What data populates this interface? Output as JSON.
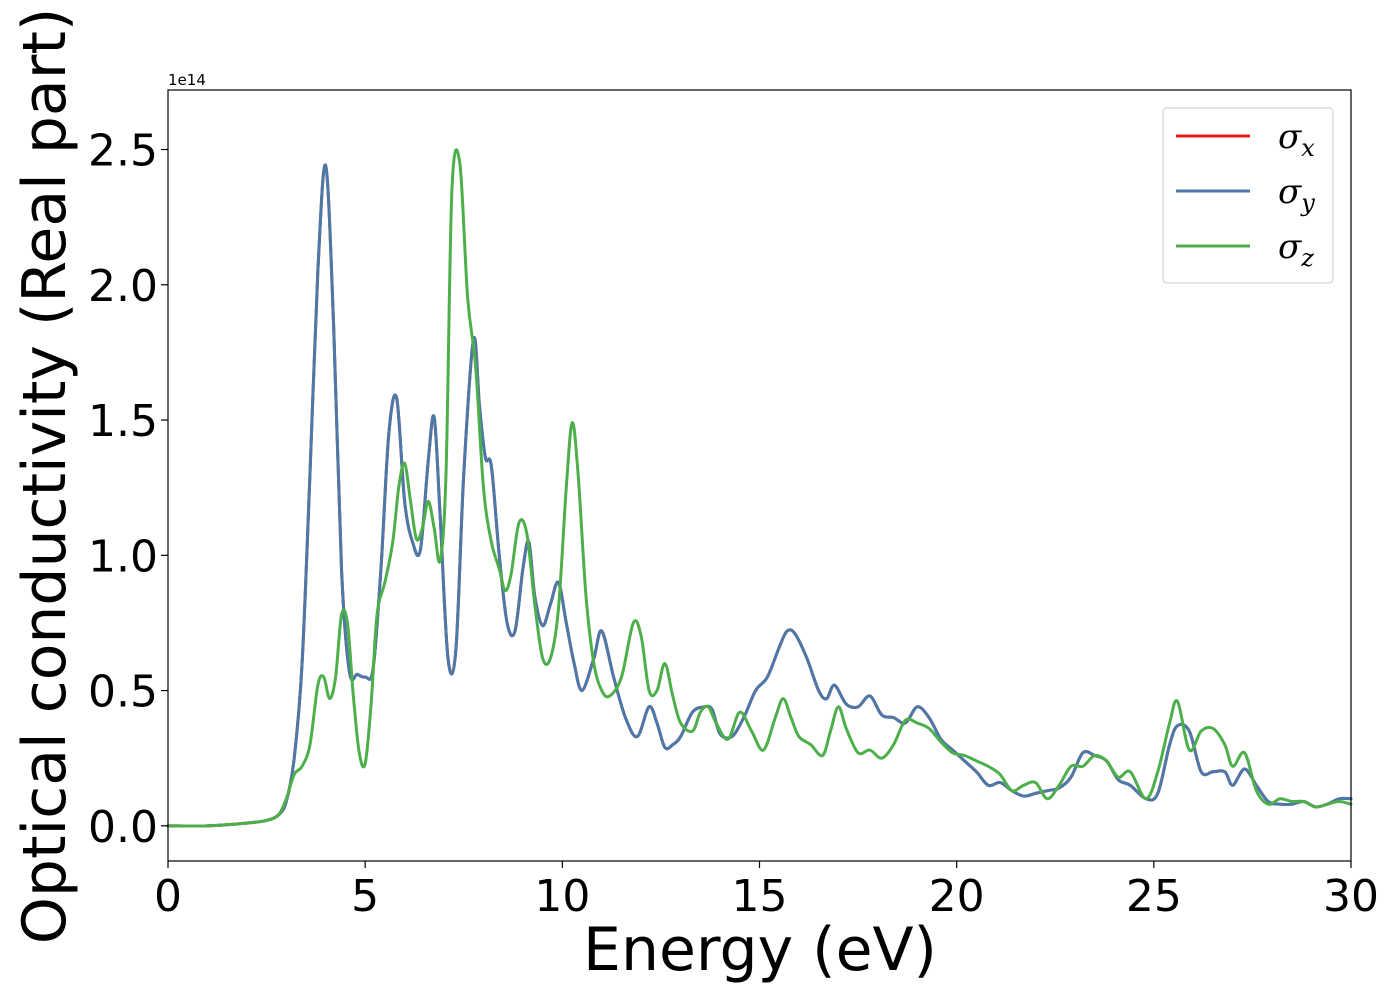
{
  "chart_data": {
    "type": "line",
    "xlabel": "Energy (eV)",
    "ylabel": "Optical conductivity (Real part)",
    "y_offset_label": "1e14",
    "xlim": [
      0,
      30
    ],
    "ylim": [
      -0.13,
      2.72
    ],
    "y_scale_factor": 100000000000000.0,
    "xticks": [
      0,
      5,
      10,
      15,
      20,
      25,
      30
    ],
    "xtick_labels": [
      "0",
      "5",
      "10",
      "15",
      "20",
      "25",
      "30"
    ],
    "yticks": [
      0.0,
      0.5,
      1.0,
      1.5,
      2.0,
      2.5
    ],
    "ytick_labels": [
      "0.0",
      "0.5",
      "1.0",
      "1.5",
      "2.0",
      "2.5"
    ],
    "grid": false,
    "legend_position": "top-right",
    "series": [
      {
        "name": "σx",
        "symbol": "σ",
        "subscript": "x",
        "color": "#e41a1c",
        "x": [
          0,
          1,
          2,
          2.5,
          2.8,
          3.0,
          3.2,
          3.4,
          3.6,
          3.8,
          4.0,
          4.2,
          4.4,
          4.6,
          4.8,
          5.0,
          5.2,
          5.4,
          5.6,
          5.8,
          6.0,
          6.2,
          6.4,
          6.6,
          6.75,
          6.9,
          7.1,
          7.3,
          7.5,
          7.75,
          7.9,
          8.05,
          8.2,
          8.4,
          8.6,
          8.8,
          9.0,
          9.15,
          9.3,
          9.5,
          9.7,
          9.9,
          10.1,
          10.3,
          10.5,
          10.8,
          11.0,
          11.3,
          11.6,
          11.9,
          12.2,
          12.4,
          12.6,
          12.8,
          13.0,
          13.3,
          13.6,
          13.8,
          14.0,
          14.3,
          14.6,
          14.9,
          15.2,
          15.5,
          15.7,
          15.9,
          16.2,
          16.5,
          16.7,
          16.9,
          17.2,
          17.5,
          17.8,
          18.1,
          18.4,
          18.7,
          19.0,
          19.3,
          19.6,
          19.9,
          20.2,
          20.5,
          20.8,
          21.1,
          21.4,
          21.7,
          22.0,
          22.3,
          22.6,
          22.9,
          23.2,
          23.5,
          23.8,
          24.1,
          24.4,
          24.8,
          25.1,
          25.4,
          25.6,
          25.9,
          26.2,
          26.5,
          26.8,
          27.0,
          27.3,
          27.6,
          27.9,
          28.2,
          28.5,
          28.8,
          29.1,
          29.4,
          29.7,
          30.0
        ],
        "values": [
          0.0,
          0.0,
          0.01,
          0.02,
          0.04,
          0.09,
          0.25,
          0.6,
          1.3,
          2.05,
          2.44,
          1.85,
          0.95,
          0.57,
          0.56,
          0.55,
          0.58,
          0.95,
          1.45,
          1.58,
          1.2,
          1.05,
          1.02,
          1.35,
          1.51,
          1.15,
          0.62,
          0.65,
          1.3,
          1.8,
          1.55,
          1.36,
          1.33,
          1.0,
          0.75,
          0.72,
          0.95,
          1.05,
          0.85,
          0.74,
          0.82,
          0.9,
          0.75,
          0.6,
          0.5,
          0.62,
          0.72,
          0.55,
          0.4,
          0.33,
          0.44,
          0.38,
          0.29,
          0.3,
          0.33,
          0.42,
          0.44,
          0.43,
          0.34,
          0.33,
          0.4,
          0.5,
          0.55,
          0.66,
          0.72,
          0.71,
          0.62,
          0.5,
          0.47,
          0.52,
          0.45,
          0.44,
          0.48,
          0.41,
          0.4,
          0.38,
          0.44,
          0.4,
          0.32,
          0.28,
          0.24,
          0.2,
          0.15,
          0.16,
          0.13,
          0.11,
          0.12,
          0.13,
          0.14,
          0.18,
          0.27,
          0.26,
          0.24,
          0.17,
          0.15,
          0.1,
          0.12,
          0.3,
          0.37,
          0.35,
          0.2,
          0.2,
          0.2,
          0.15,
          0.21,
          0.15,
          0.09,
          0.08,
          0.08,
          0.09,
          0.07,
          0.08,
          0.1,
          0.1
        ]
      },
      {
        "name": "σy",
        "symbol": "σ",
        "subscript": "y",
        "color": "#4a79aa",
        "x": [
          0,
          1,
          2,
          2.5,
          2.8,
          3.0,
          3.2,
          3.4,
          3.6,
          3.8,
          4.0,
          4.2,
          4.4,
          4.6,
          4.8,
          5.0,
          5.2,
          5.4,
          5.6,
          5.8,
          6.0,
          6.2,
          6.4,
          6.6,
          6.75,
          6.9,
          7.1,
          7.3,
          7.5,
          7.75,
          7.9,
          8.05,
          8.2,
          8.4,
          8.6,
          8.8,
          9.0,
          9.15,
          9.3,
          9.5,
          9.7,
          9.9,
          10.1,
          10.3,
          10.5,
          10.8,
          11.0,
          11.3,
          11.6,
          11.9,
          12.2,
          12.4,
          12.6,
          12.8,
          13.0,
          13.3,
          13.6,
          13.8,
          14.0,
          14.3,
          14.6,
          14.9,
          15.2,
          15.5,
          15.7,
          15.9,
          16.2,
          16.5,
          16.7,
          16.9,
          17.2,
          17.5,
          17.8,
          18.1,
          18.4,
          18.7,
          19.0,
          19.3,
          19.6,
          19.9,
          20.2,
          20.5,
          20.8,
          21.1,
          21.4,
          21.7,
          22.0,
          22.3,
          22.6,
          22.9,
          23.2,
          23.5,
          23.8,
          24.1,
          24.4,
          24.8,
          25.1,
          25.4,
          25.6,
          25.9,
          26.2,
          26.5,
          26.8,
          27.0,
          27.3,
          27.6,
          27.9,
          28.2,
          28.5,
          28.8,
          29.1,
          29.4,
          29.7,
          30.0
        ],
        "values": [
          0.0,
          0.0,
          0.01,
          0.02,
          0.04,
          0.09,
          0.25,
          0.6,
          1.3,
          2.05,
          2.44,
          1.85,
          0.95,
          0.57,
          0.56,
          0.55,
          0.58,
          0.95,
          1.45,
          1.58,
          1.2,
          1.05,
          1.02,
          1.35,
          1.51,
          1.15,
          0.62,
          0.65,
          1.3,
          1.8,
          1.55,
          1.36,
          1.33,
          1.0,
          0.75,
          0.72,
          0.95,
          1.05,
          0.85,
          0.74,
          0.82,
          0.9,
          0.75,
          0.6,
          0.5,
          0.62,
          0.72,
          0.55,
          0.4,
          0.33,
          0.44,
          0.38,
          0.29,
          0.3,
          0.33,
          0.42,
          0.44,
          0.43,
          0.34,
          0.33,
          0.4,
          0.5,
          0.55,
          0.66,
          0.72,
          0.71,
          0.62,
          0.5,
          0.47,
          0.52,
          0.45,
          0.44,
          0.48,
          0.41,
          0.4,
          0.38,
          0.44,
          0.4,
          0.32,
          0.28,
          0.24,
          0.2,
          0.15,
          0.16,
          0.13,
          0.11,
          0.12,
          0.13,
          0.14,
          0.18,
          0.27,
          0.26,
          0.24,
          0.17,
          0.15,
          0.1,
          0.12,
          0.3,
          0.37,
          0.35,
          0.2,
          0.2,
          0.2,
          0.15,
          0.21,
          0.15,
          0.09,
          0.08,
          0.08,
          0.09,
          0.07,
          0.08,
          0.1,
          0.1
        ]
      },
      {
        "name": "σz",
        "symbol": "σ",
        "subscript": "z",
        "color": "#4daf4a",
        "x": [
          0,
          1,
          2,
          2.5,
          2.8,
          3.0,
          3.2,
          3.4,
          3.6,
          3.8,
          3.95,
          4.1,
          4.25,
          4.4,
          4.55,
          4.7,
          4.85,
          5.0,
          5.15,
          5.3,
          5.5,
          5.7,
          5.85,
          6.0,
          6.15,
          6.3,
          6.45,
          6.6,
          6.75,
          6.9,
          7.05,
          7.2,
          7.4,
          7.6,
          7.8,
          8.0,
          8.2,
          8.4,
          8.55,
          8.7,
          8.9,
          9.1,
          9.3,
          9.5,
          9.7,
          9.9,
          10.1,
          10.25,
          10.4,
          10.6,
          10.8,
          11.0,
          11.2,
          11.5,
          11.8,
          12.0,
          12.2,
          12.4,
          12.6,
          12.8,
          13.0,
          13.3,
          13.5,
          13.7,
          13.9,
          14.2,
          14.5,
          14.8,
          15.1,
          15.4,
          15.6,
          15.8,
          16.0,
          16.3,
          16.6,
          16.8,
          17.0,
          17.2,
          17.5,
          17.8,
          18.1,
          18.4,
          18.7,
          19.0,
          19.3,
          19.6,
          19.9,
          20.2,
          20.5,
          20.8,
          21.1,
          21.4,
          21.7,
          22.0,
          22.3,
          22.6,
          22.9,
          23.2,
          23.5,
          23.8,
          24.1,
          24.4,
          24.8,
          25.1,
          25.4,
          25.6,
          25.9,
          26.2,
          26.5,
          26.8,
          27.0,
          27.3,
          27.6,
          27.9,
          28.2,
          28.5,
          28.8,
          29.1,
          29.4,
          29.7,
          30.0
        ],
        "values": [
          0.0,
          0.0,
          0.01,
          0.02,
          0.04,
          0.1,
          0.19,
          0.22,
          0.3,
          0.52,
          0.55,
          0.47,
          0.55,
          0.78,
          0.75,
          0.48,
          0.27,
          0.23,
          0.45,
          0.78,
          0.9,
          1.05,
          1.25,
          1.34,
          1.2,
          1.06,
          1.1,
          1.2,
          1.1,
          0.98,
          1.3,
          2.35,
          2.45,
          1.95,
          1.7,
          1.25,
          1.05,
          0.95,
          0.87,
          0.93,
          1.12,
          1.08,
          0.82,
          0.62,
          0.62,
          0.8,
          1.25,
          1.49,
          1.3,
          0.85,
          0.6,
          0.5,
          0.48,
          0.55,
          0.75,
          0.7,
          0.5,
          0.5,
          0.6,
          0.48,
          0.38,
          0.35,
          0.42,
          0.44,
          0.38,
          0.32,
          0.42,
          0.35,
          0.28,
          0.4,
          0.47,
          0.4,
          0.33,
          0.3,
          0.26,
          0.35,
          0.44,
          0.36,
          0.27,
          0.28,
          0.25,
          0.3,
          0.39,
          0.38,
          0.36,
          0.31,
          0.27,
          0.26,
          0.24,
          0.22,
          0.19,
          0.13,
          0.15,
          0.16,
          0.1,
          0.15,
          0.22,
          0.22,
          0.26,
          0.24,
          0.18,
          0.2,
          0.1,
          0.2,
          0.38,
          0.46,
          0.28,
          0.35,
          0.36,
          0.3,
          0.22,
          0.27,
          0.13,
          0.08,
          0.1,
          0.09,
          0.09,
          0.07,
          0.08,
          0.09,
          0.08
        ]
      }
    ]
  }
}
